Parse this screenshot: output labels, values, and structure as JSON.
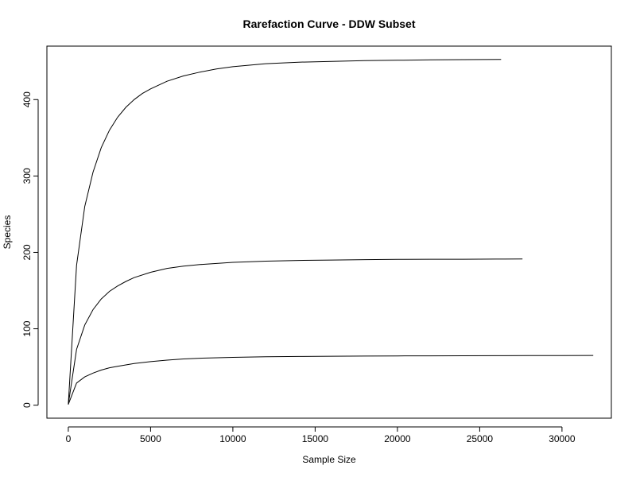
{
  "chart_data": {
    "type": "line",
    "title": "Rarefaction Curve - DDW Subset",
    "xlabel": "Sample Size",
    "ylabel": "Species",
    "xlim": [
      -1300,
      33000
    ],
    "ylim": [
      -17,
      470
    ],
    "xticks": [
      0,
      5000,
      10000,
      15000,
      20000,
      25000,
      30000
    ],
    "yticks": [
      0,
      100,
      200,
      300,
      400
    ],
    "xtick_labels": [
      "0",
      "5000",
      "10000",
      "15000",
      "20000",
      "25000",
      "30000"
    ],
    "ytick_labels": [
      "0",
      "100",
      "200",
      "300",
      "400"
    ],
    "grid": false,
    "series": [
      {
        "color": "#000000",
        "x": [
          1,
          500,
          1000,
          1500,
          2000,
          2500,
          3000,
          3500,
          4000,
          4500,
          5000,
          6000,
          7000,
          8000,
          9000,
          10000,
          12000,
          14000,
          16000,
          18000,
          20000,
          22000,
          24000,
          26300
        ],
        "y": [
          1,
          183,
          260,
          305,
          337,
          360,
          377,
          390,
          400,
          408,
          414,
          424,
          431,
          436,
          440,
          443,
          447,
          449,
          450,
          451,
          451.5,
          452,
          452.3,
          452.5
        ]
      },
      {
        "color": "#000000",
        "x": [
          1,
          500,
          1000,
          1500,
          2000,
          2500,
          3000,
          3500,
          4000,
          5000,
          6000,
          7000,
          8000,
          10000,
          12000,
          14000,
          16000,
          18000,
          20000,
          22000,
          24000,
          26000,
          27600
        ],
        "y": [
          1,
          73,
          105,
          125,
          139,
          149,
          156,
          162,
          167,
          174,
          179,
          182,
          184,
          187,
          188.5,
          189.5,
          190,
          190.5,
          190.8,
          191,
          191,
          191.2,
          191.3
        ]
      },
      {
        "color": "#000000",
        "x": [
          1,
          500,
          1000,
          1500,
          2000,
          2500,
          3000,
          4000,
          5000,
          6000,
          7000,
          8000,
          10000,
          12000,
          14000,
          16000,
          18000,
          20000,
          22000,
          24000,
          26000,
          28000,
          30000,
          31900
        ],
        "y": [
          1,
          29,
          37,
          42,
          46,
          49,
          51,
          54.5,
          57,
          59,
          60.5,
          61.5,
          62.6,
          63.3,
          63.8,
          64.1,
          64.3,
          64.5,
          64.6,
          64.7,
          64.8,
          64.9,
          65,
          65.1
        ]
      }
    ]
  }
}
